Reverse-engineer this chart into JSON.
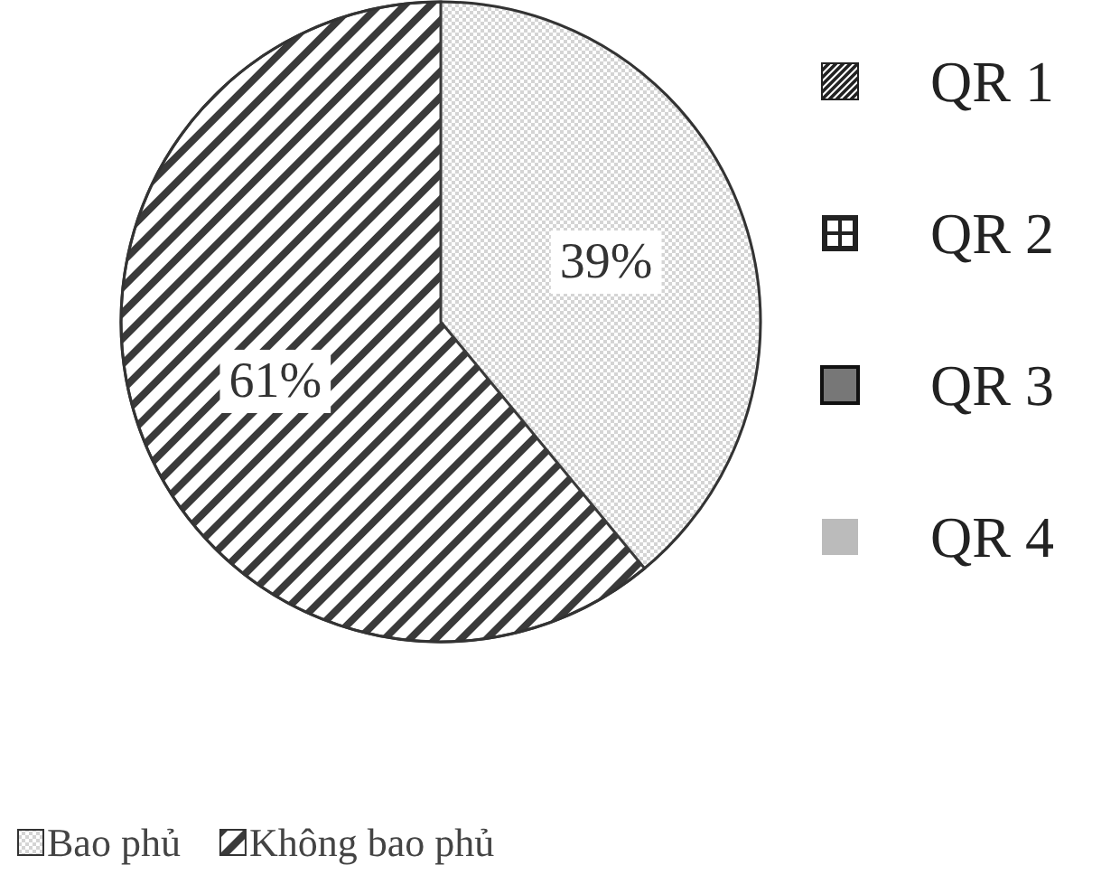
{
  "chart_data": {
    "type": "pie",
    "categories": [
      "Bao phủ",
      "Không bao phủ"
    ],
    "values": [
      39,
      61
    ],
    "colors": [
      "#d4d4d4",
      "#3a3a3a"
    ],
    "value_labels": [
      "39%",
      "61%"
    ],
    "legend": "bottom left",
    "annotations": [
      "QR 1",
      "QR 2",
      "QR 3",
      "QR 4"
    ]
  }
}
